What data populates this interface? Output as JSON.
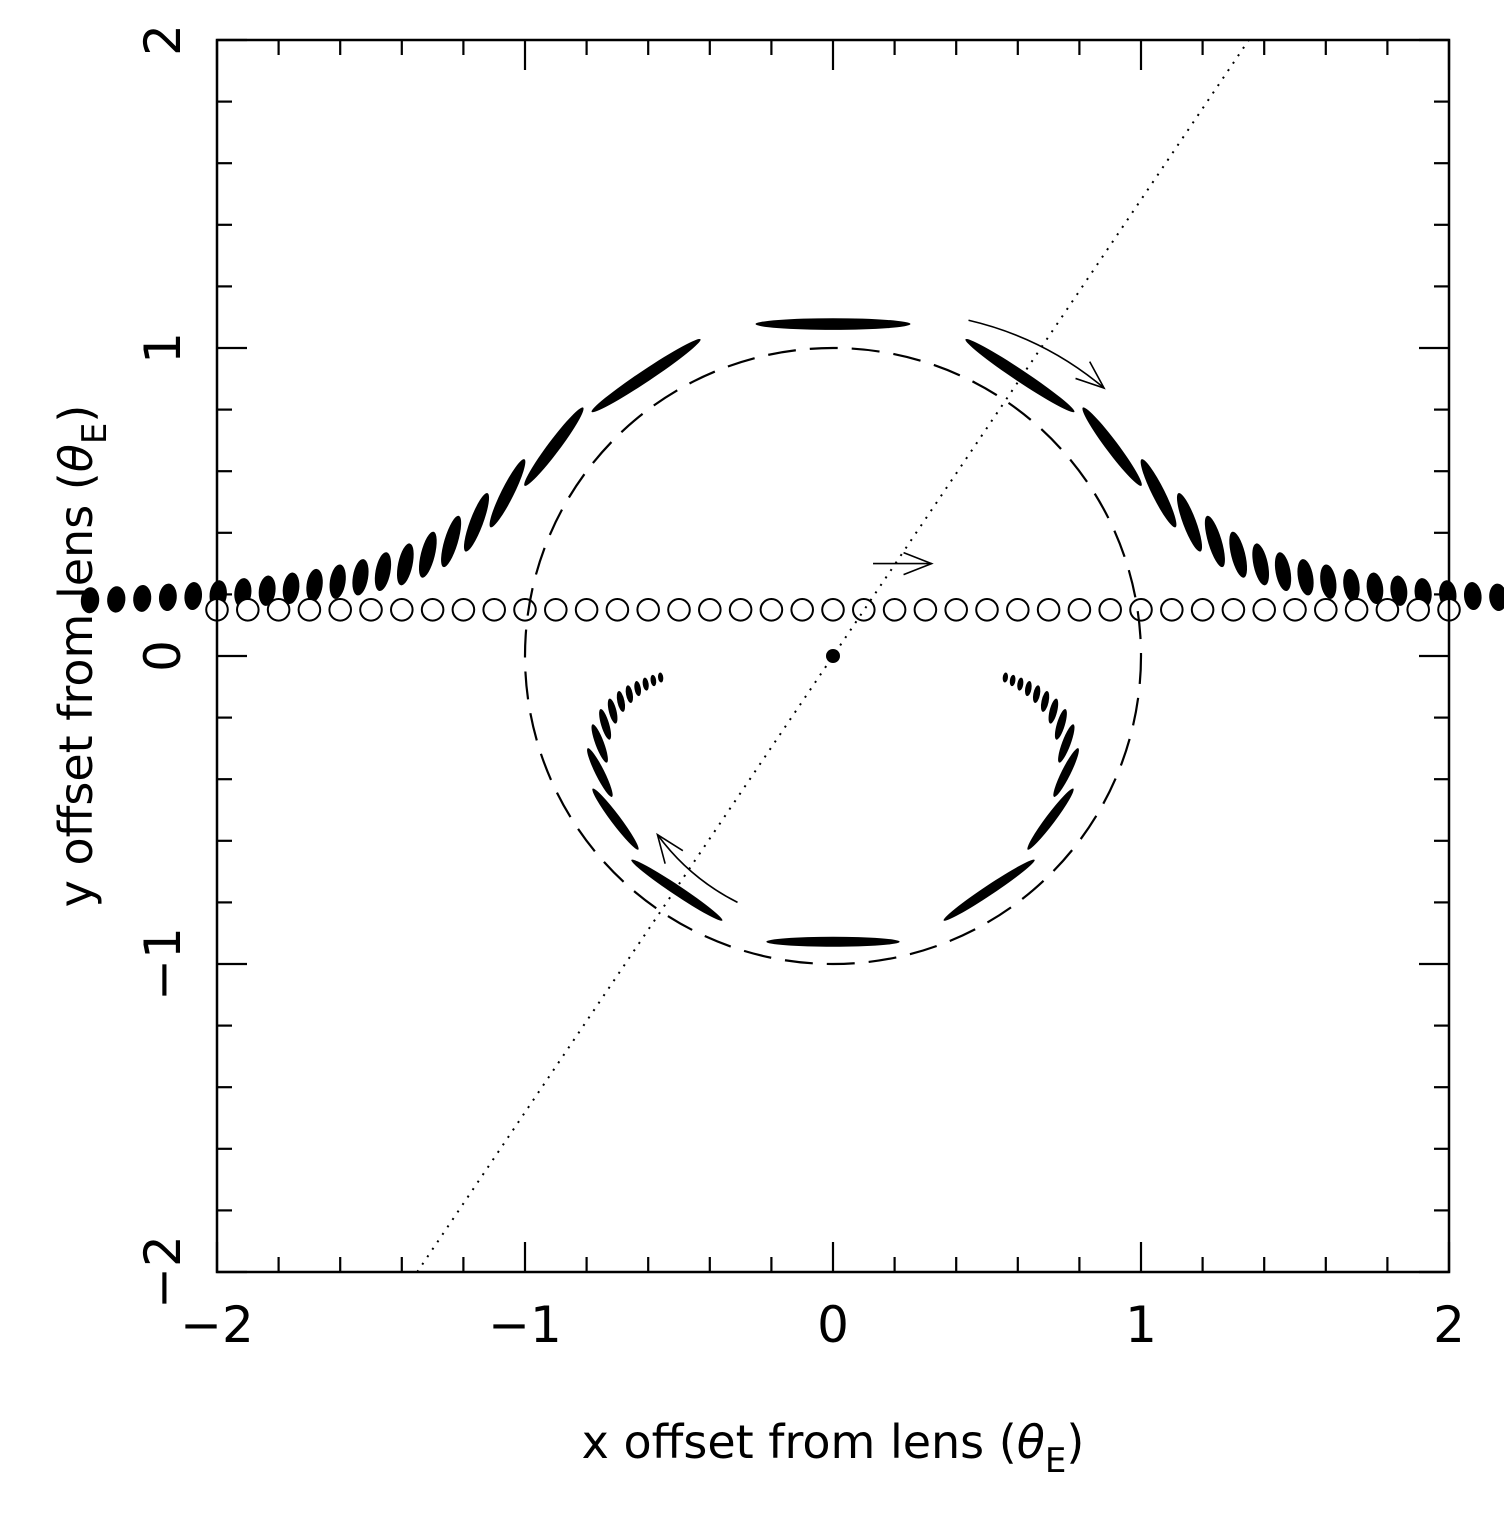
{
  "chart_data": {
    "type": "scatter",
    "title": "",
    "xlabel": {
      "text": "x offset from lens (",
      "symbol": "θ",
      "subscript": "E",
      "close": ")"
    },
    "ylabel": {
      "text": "y offset from lens (",
      "symbol": "θ",
      "subscript": "E",
      "close": ")"
    },
    "xlim": [
      -2,
      2
    ],
    "ylim": [
      -2,
      2
    ],
    "x_tick_labels": [
      {
        "value": -2,
        "label": "−2"
      },
      {
        "value": -1,
        "label": "−1"
      },
      {
        "value": 0,
        "label": "0"
      },
      {
        "value": 1,
        "label": "1"
      },
      {
        "value": 2,
        "label": "2"
      }
    ],
    "y_tick_labels": [
      {
        "value": -2,
        "label": "−2"
      },
      {
        "value": -1,
        "label": "−1"
      },
      {
        "value": 0,
        "label": "0"
      },
      {
        "value": 1,
        "label": "1"
      },
      {
        "value": 2,
        "label": "2"
      }
    ],
    "minor_tick_step": 0.2,
    "grid": false,
    "lens": {
      "x": 0,
      "y": 0
    },
    "einstein_ring_radius": 1,
    "source_track": {
      "y": 0.15,
      "x_start": -2,
      "x_end": 2,
      "step": 0.1
    },
    "source_motion_line": {
      "x": [
        -1.35,
        1.35
      ],
      "y": [
        -2,
        2
      ]
    },
    "arrows": [
      {
        "name": "source-direction",
        "from": [
          0.13,
          0.3
        ],
        "to": [
          0.32,
          0.3
        ]
      },
      {
        "name": "major-image-direction",
        "from": [
          0.44,
          1.09
        ],
        "to": [
          0.88,
          0.87
        ]
      },
      {
        "name": "minor-image-direction",
        "from": [
          -0.31,
          -0.8
        ],
        "to": [
          -0.57,
          -0.58
        ]
      }
    ]
  }
}
